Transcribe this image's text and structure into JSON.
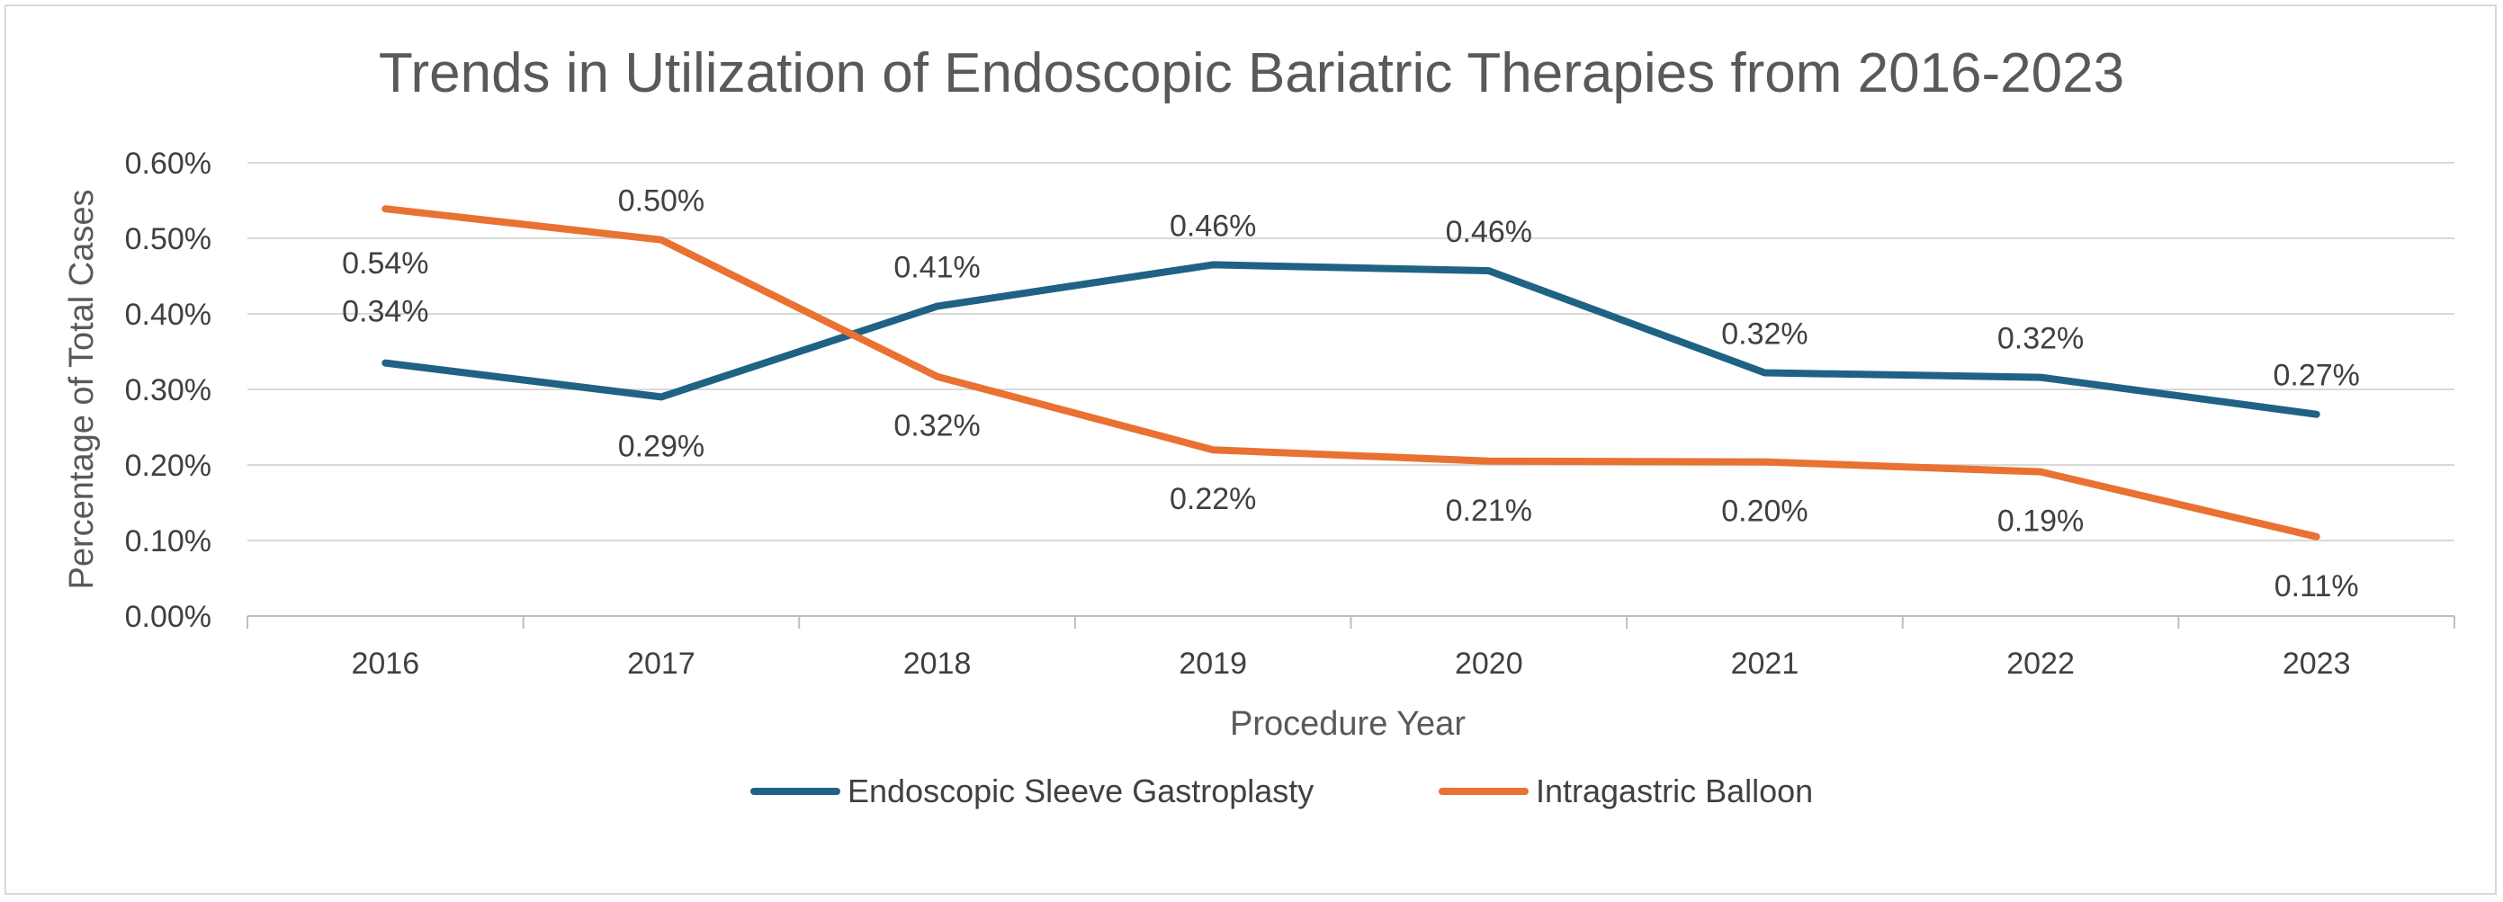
{
  "chart_data": {
    "type": "line",
    "title": "Trends in Utilization of Endoscopic Bariatric Therapies from 2016-2023",
    "xlabel": "Procedure Year",
    "ylabel": "Percentage of Total Cases",
    "categories": [
      "2016",
      "2017",
      "2018",
      "2019",
      "2020",
      "2021",
      "2022",
      "2023"
    ],
    "ylim": [
      0,
      0.6
    ],
    "yticks": [
      "0.00%",
      "0.10%",
      "0.20%",
      "0.30%",
      "0.40%",
      "0.50%",
      "0.60%"
    ],
    "grid": true,
    "legend_position": "bottom",
    "series": [
      {
        "name": "Endoscopic Sleeve Gastroplasty",
        "color": "#1f6284",
        "values": [
          0.335,
          0.29,
          0.41,
          0.465,
          0.457,
          0.322,
          0.316,
          0.267
        ],
        "labels": [
          "0.34%",
          "0.29%",
          "0.41%",
          "0.46%",
          "0.46%",
          "0.32%",
          "0.32%",
          "0.27%"
        ]
      },
      {
        "name": "Intragastric Balloon",
        "color": "#e97132",
        "values": [
          0.539,
          0.498,
          0.317,
          0.22,
          0.205,
          0.204,
          0.191,
          0.105
        ],
        "labels": [
          "0.54%",
          "0.50%",
          "0.32%",
          "0.22%",
          "0.21%",
          "0.20%",
          "0.19%",
          "0.11%"
        ]
      }
    ]
  }
}
